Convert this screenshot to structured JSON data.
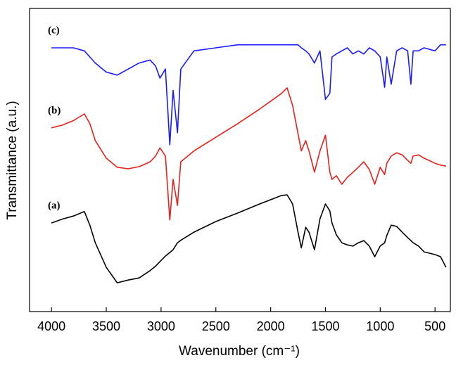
{
  "chart_data": {
    "type": "line",
    "x_label": "Wavenumber (cm⁻¹)",
    "y_label": "Transmittance (a.u.)",
    "x": [
      4000,
      3900,
      3800,
      3700,
      3650,
      3600,
      3500,
      3400,
      3300,
      3200,
      3100,
      3050,
      3010,
      2960,
      2920,
      2890,
      2850,
      2820,
      2700,
      2500,
      2300,
      2100,
      1900,
      1850,
      1800,
      1750,
      1720,
      1680,
      1650,
      1600,
      1550,
      1500,
      1460,
      1440,
      1400,
      1350,
      1300,
      1250,
      1200,
      1150,
      1100,
      1050,
      1000,
      960,
      940,
      900,
      850,
      800,
      750,
      720,
      700,
      650,
      600,
      500,
      450,
      400
    ],
    "series": [
      {
        "name": "(a)",
        "color": "#000000",
        "values": [
          29.2,
          30.5,
          31.5,
          33,
          28.5,
          22.7,
          14.6,
          9.5,
          10.4,
          11.1,
          13.5,
          15,
          16.5,
          18.3,
          19.5,
          20.4,
          22.7,
          23.5,
          26.2,
          29.7,
          32.5,
          35.5,
          38.3,
          38.5,
          35.5,
          26.2,
          21,
          27.8,
          26.2,
          20.4,
          30.6,
          35.5,
          33.2,
          29.2,
          25.3,
          22.7,
          22,
          21.6,
          22.7,
          23.4,
          21.6,
          18.1,
          21.6,
          22.7,
          25.1,
          28.5,
          28.1,
          26.2,
          24.4,
          23.4,
          22.7,
          21.6,
          19.7,
          18.8,
          18.1,
          14.6
        ]
      },
      {
        "name": "(b)",
        "color": "#e8201c",
        "values": [
          60.6,
          61.5,
          63,
          65.2,
          62,
          56.4,
          50.6,
          47.6,
          47.1,
          47.8,
          49.4,
          51.3,
          54,
          51.3,
          30.2,
          43.6,
          35,
          49.4,
          53,
          57.5,
          62,
          66.8,
          72,
          73.8,
          68,
          58.7,
          53,
          56.4,
          53,
          46,
          53,
          58.2,
          46,
          43.6,
          44.8,
          42,
          44.3,
          45.9,
          47.6,
          49.4,
          46.9,
          42,
          47.6,
          45.2,
          48.9,
          51.3,
          52.4,
          51.7,
          49.9,
          48.9,
          51.3,
          51.7,
          50.6,
          48.9,
          48.3,
          48
        ]
      },
      {
        "name": "(c)",
        "color": "#1a1aff",
        "values": [
          87,
          87,
          87,
          86,
          84,
          82,
          79,
          78,
          80,
          82,
          83,
          81,
          77,
          80,
          55,
          73,
          59,
          80,
          86,
          87,
          88,
          88,
          88,
          88,
          88,
          88,
          87,
          86,
          85,
          82,
          86,
          70,
          72,
          84,
          85,
          86,
          87,
          85,
          86,
          85,
          87,
          86,
          84,
          74,
          84,
          75,
          86,
          87,
          86,
          75,
          86,
          86,
          87,
          86,
          88,
          88
        ]
      }
    ],
    "xlim": [
      4200,
      360
    ],
    "xticks": [
      4000,
      3500,
      3000,
      2500,
      2000,
      1500,
      1000,
      500
    ],
    "ylim": [
      0,
      100
    ]
  }
}
